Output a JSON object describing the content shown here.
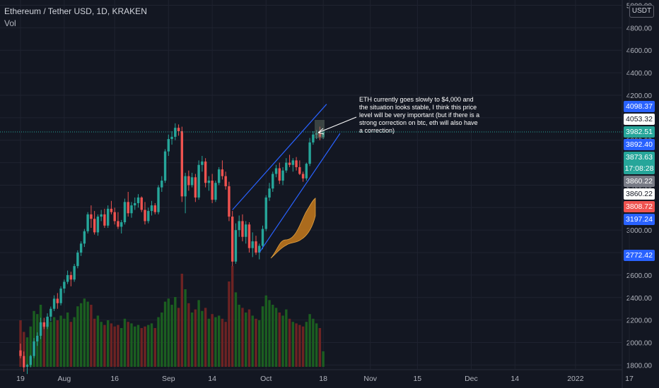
{
  "legend": {
    "title": "Ethereum / Tether USD, 1D, KRAKEN",
    "volume_label": "Vol"
  },
  "currency_button": "USDT",
  "annotation": {
    "text": "ETH currently goes slowly to $4,000 and the situation looks stable, I think this price level will be very important (but if there is a strong correction on btc, eth will also have a correction)"
  },
  "colors": {
    "background": "#131722",
    "up": "#26a69a",
    "down": "#ef5350",
    "vol_up": "#1b5e20",
    "vol_down": "#6d2323",
    "channel": "#2962ff",
    "drawing": "#c77a1c"
  },
  "price_labels": [
    {
      "text": "4098.37",
      "value": 4098.37,
      "bg": "#2962ff",
      "fg": "#ffffff"
    },
    {
      "text": "4053.32",
      "value": 4053.32,
      "bg": "#ffffff",
      "fg": "#131722"
    },
    {
      "text": "3982.51",
      "value": 3982.51,
      "bg": "#26a69a",
      "fg": "#ffffff"
    },
    {
      "text": "3892.40",
      "value": 3892.4,
      "bg": "#2962ff",
      "fg": "#ffffff"
    },
    {
      "text": "3873.63",
      "value": 3873.63,
      "bg": "#26a69a",
      "fg": "#ffffff",
      "sub": "17:08:28"
    },
    {
      "text": "3860.22",
      "value": 3860.22,
      "bg": "#787b86",
      "fg": "#ffffff"
    },
    {
      "text": "3860.22",
      "value": 3860.22,
      "bg": "#ffffff",
      "fg": "#131722"
    },
    {
      "text": "3808.72",
      "value": 3808.72,
      "bg": "#ef5350",
      "fg": "#ffffff"
    },
    {
      "text": "3197.24",
      "value": 3197.24,
      "bg": "#2962ff",
      "fg": "#ffffff"
    },
    {
      "text": "2772.42",
      "value": 2772.42,
      "bg": "#2962ff",
      "fg": "#ffffff"
    }
  ],
  "chart_data": {
    "type": "candlestick",
    "title": "Ethereum / Tether USD, 1D, KRAKEN",
    "ylim": [
      1800,
      5000
    ],
    "y_ticks": [
      1800,
      2000,
      2200,
      2400,
      2600,
      2800,
      3000,
      3200,
      3400,
      3600,
      3800,
      4000,
      4200,
      4400,
      4600,
      4800,
      5000
    ],
    "y_tick_labels": [
      "1800.00",
      "2000.00",
      "2200.00",
      "2400.00",
      "2600.00",
      "2800.00",
      "3000.00",
      "3200.00",
      "3400.00",
      "3600.00",
      "3800.00",
      "4000.00",
      "4200.00",
      "4400.00",
      "4600.00",
      "4800.00",
      "5000.00"
    ],
    "x_ticks": [
      {
        "label": "19",
        "day": 0
      },
      {
        "label": "Aug",
        "day": 13
      },
      {
        "label": "16",
        "day": 28
      },
      {
        "label": "Sep",
        "day": 44
      },
      {
        "label": "14",
        "day": 57
      },
      {
        "label": "Oct",
        "day": 73
      },
      {
        "label": "18",
        "day": 90
      },
      {
        "label": "Nov",
        "day": 104
      },
      {
        "label": "15",
        "day": 118
      },
      {
        "label": "Dec",
        "day": 134
      },
      {
        "label": "14",
        "day": 147
      },
      {
        "label": "2022",
        "day": 165
      },
      {
        "label": "17",
        "day": 181
      }
    ],
    "last_price": 3873.63,
    "channel_lines": [
      {
        "from": {
          "day": 63,
          "price": 3180
        },
        "to": {
          "day": 91,
          "price": 4120
        }
      },
      {
        "from": {
          "day": 71,
          "price": 2800
        },
        "to": {
          "day": 95,
          "price": 3860
        }
      }
    ],
    "ohlcv": [
      [
        1930,
        1990,
        1860,
        1880,
        60
      ],
      [
        1880,
        1920,
        1740,
        1780,
        45
      ],
      [
        1785,
        1810,
        1720,
        1800,
        38
      ],
      [
        1800,
        1890,
        1780,
        1880,
        52
      ],
      [
        1880,
        2040,
        1860,
        2010,
        72
      ],
      [
        2010,
        2090,
        1970,
        2060,
        68
      ],
      [
        2060,
        2220,
        2030,
        2180,
        80
      ],
      [
        2180,
        2220,
        2120,
        2140,
        55
      ],
      [
        2140,
        2260,
        2120,
        2230,
        62
      ],
      [
        2230,
        2320,
        2190,
        2300,
        58
      ],
      [
        2300,
        2420,
        2280,
        2390,
        64
      ],
      [
        2390,
        2440,
        2300,
        2350,
        60
      ],
      [
        2350,
        2500,
        2330,
        2480,
        66
      ],
      [
        2480,
        2560,
        2440,
        2540,
        62
      ],
      [
        2540,
        2640,
        2520,
        2600,
        70
      ],
      [
        2600,
        2630,
        2500,
        2560,
        58
      ],
      [
        2560,
        2700,
        2540,
        2680,
        64
      ],
      [
        2680,
        2820,
        2660,
        2800,
        78
      ],
      [
        2800,
        2900,
        2770,
        2880,
        82
      ],
      [
        2880,
        3010,
        2850,
        2990,
        88
      ],
      [
        2990,
        3160,
        2970,
        3140,
        84
      ],
      [
        3140,
        3220,
        3020,
        3100,
        80
      ],
      [
        3100,
        3170,
        2960,
        2980,
        62
      ],
      [
        2980,
        3140,
        2950,
        3120,
        66
      ],
      [
        3120,
        3180,
        3080,
        3140,
        58
      ],
      [
        3140,
        3190,
        3020,
        3040,
        54
      ],
      [
        3040,
        3220,
        3020,
        3190,
        60
      ],
      [
        3190,
        3260,
        3140,
        3160,
        56
      ],
      [
        3160,
        3200,
        3050,
        3080,
        52
      ],
      [
        3080,
        3160,
        3010,
        3030,
        54
      ],
      [
        3030,
        3090,
        2970,
        3070,
        50
      ],
      [
        3070,
        3280,
        3050,
        3250,
        62
      ],
      [
        3250,
        3340,
        3120,
        3150,
        58
      ],
      [
        3150,
        3250,
        3110,
        3220,
        56
      ],
      [
        3220,
        3290,
        3180,
        3240,
        52
      ],
      [
        3240,
        3320,
        3200,
        3290,
        54
      ],
      [
        3290,
        3300,
        3160,
        3180,
        50
      ],
      [
        3180,
        3250,
        3050,
        3080,
        52
      ],
      [
        3080,
        3200,
        3060,
        3170,
        54
      ],
      [
        3170,
        3260,
        3130,
        3220,
        56
      ],
      [
        3220,
        3240,
        3140,
        3160,
        50
      ],
      [
        3160,
        3400,
        3140,
        3380,
        64
      ],
      [
        3380,
        3480,
        3340,
        3440,
        70
      ],
      [
        3440,
        3720,
        3420,
        3700,
        84
      ],
      [
        3700,
        3850,
        3660,
        3810,
        88
      ],
      [
        3810,
        3880,
        3760,
        3830,
        80
      ],
      [
        3830,
        3950,
        3800,
        3910,
        90
      ],
      [
        3910,
        3940,
        3840,
        3880,
        76
      ],
      [
        3880,
        3920,
        3250,
        3300,
        120
      ],
      [
        3300,
        3510,
        3150,
        3480,
        100
      ],
      [
        3480,
        3530,
        3350,
        3400,
        82
      ],
      [
        3400,
        3510,
        3380,
        3470,
        70
      ],
      [
        3470,
        3500,
        3250,
        3290,
        74
      ],
      [
        3290,
        3620,
        3270,
        3580,
        86
      ],
      [
        3580,
        3660,
        3520,
        3610,
        72
      ],
      [
        3610,
        3640,
        3380,
        3420,
        76
      ],
      [
        3420,
        3480,
        3350,
        3440,
        62
      ],
      [
        3440,
        3500,
        3240,
        3270,
        68
      ],
      [
        3270,
        3440,
        3250,
        3420,
        64
      ],
      [
        3420,
        3560,
        3400,
        3540,
        66
      ],
      [
        3540,
        3620,
        3450,
        3480,
        62
      ],
      [
        3480,
        3520,
        3360,
        3390,
        58
      ],
      [
        3390,
        3430,
        3080,
        3120,
        110
      ],
      [
        3120,
        3170,
        2680,
        2720,
        130
      ],
      [
        2720,
        3060,
        2700,
        3000,
        96
      ],
      [
        3000,
        3130,
        2940,
        3080,
        80
      ],
      [
        3080,
        3140,
        2900,
        2940,
        76
      ],
      [
        2940,
        3080,
        2880,
        3050,
        70
      ],
      [
        3050,
        3070,
        2800,
        2840,
        74
      ],
      [
        2840,
        2980,
        2760,
        2900,
        66
      ],
      [
        2900,
        2950,
        2780,
        2800,
        62
      ],
      [
        2800,
        2880,
        2740,
        2860,
        60
      ],
      [
        2860,
        3040,
        2830,
        3010,
        78
      ],
      [
        3010,
        3310,
        2990,
        3290,
        92
      ],
      [
        3290,
        3420,
        3260,
        3370,
        86
      ],
      [
        3370,
        3520,
        3340,
        3500,
        80
      ],
      [
        3500,
        3580,
        3470,
        3550,
        76
      ],
      [
        3550,
        3600,
        3410,
        3440,
        70
      ],
      [
        3440,
        3560,
        3400,
        3530,
        66
      ],
      [
        3530,
        3640,
        3510,
        3600,
        74
      ],
      [
        3600,
        3670,
        3560,
        3580,
        62
      ],
      [
        3580,
        3640,
        3520,
        3620,
        58
      ],
      [
        3620,
        3650,
        3530,
        3560,
        56
      ],
      [
        3560,
        3620,
        3490,
        3500,
        54
      ],
      [
        3500,
        3520,
        3430,
        3460,
        52
      ],
      [
        3460,
        3600,
        3440,
        3590,
        58
      ],
      [
        3590,
        3820,
        3570,
        3780,
        68
      ],
      [
        3780,
        3880,
        3760,
        3850,
        62
      ],
      [
        3850,
        3890,
        3810,
        3860,
        56
      ],
      [
        3860,
        3920,
        3800,
        3830,
        50
      ],
      [
        3830,
        3890,
        3810,
        3873.63,
        20
      ]
    ]
  }
}
